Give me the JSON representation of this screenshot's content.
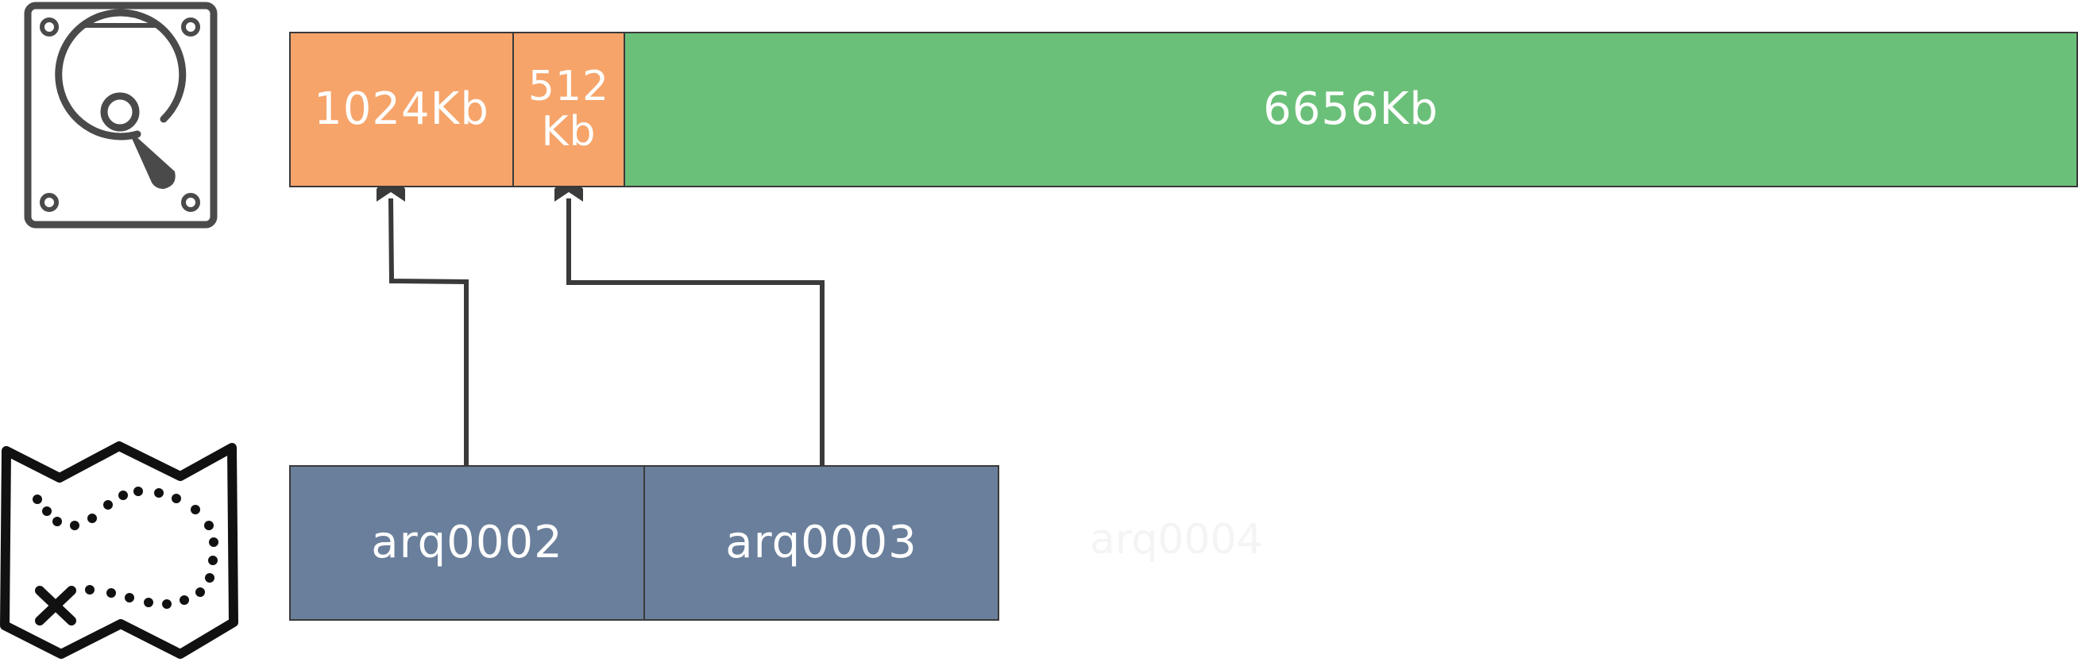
{
  "disk": {
    "icon": "hard-disk-icon",
    "segments": [
      {
        "label": "1024Kb",
        "color": "#f6a46a"
      },
      {
        "label": "512 Kb",
        "color": "#f6a46a"
      },
      {
        "label": "6656Kb",
        "color": "#6bc079"
      }
    ]
  },
  "files": {
    "icon": "treasure-map-icon",
    "entries": [
      {
        "label": "arq0002",
        "color": "#6a7f9b"
      },
      {
        "label": "arq0003",
        "color": "#6a7f9b"
      }
    ],
    "faded_label": "arq0004"
  },
  "colors": {
    "line": "#3a3a3a",
    "icon": "#4a4a4a"
  }
}
